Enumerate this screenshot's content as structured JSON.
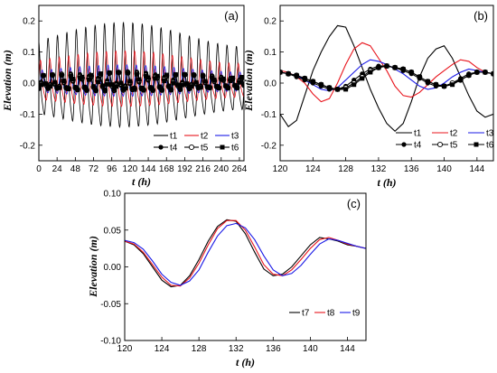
{
  "chart_data": [
    {
      "panel": "(a)",
      "type": "line",
      "xlabel": "t (h)",
      "ylabel": "Elevation (m)",
      "xlim": [
        0,
        270
      ],
      "ylim": [
        -0.25,
        0.25
      ],
      "xticks": [
        "0",
        "24",
        "48",
        "72",
        "96",
        "120",
        "144",
        "168",
        "192",
        "216",
        "240",
        "264"
      ],
      "yticks": [
        "-0.2",
        "-0.1",
        "0.0",
        "0.1",
        "0.2"
      ],
      "legend_position": "bottom-right",
      "series": [
        {
          "name": "t1",
          "color": "#000000",
          "marker": "none",
          "amplitude": 0.16,
          "period_h": 12.4,
          "lag_h": 0
        },
        {
          "name": "t2",
          "color": "#e8141c",
          "marker": "none",
          "amplitude": 0.085,
          "period_h": 12.4,
          "lag_h": 2.4
        },
        {
          "name": "t3",
          "color": "#1a1ae6",
          "marker": "none",
          "amplitude": 0.048,
          "period_h": 12.4,
          "lag_h": 4.6
        },
        {
          "name": "t4",
          "color": "#000000",
          "marker": "filled-circle",
          "amplitude": 0.03,
          "period_h": 12.4,
          "lag_h": 5.6
        },
        {
          "name": "t5",
          "color": "#000000",
          "marker": "open-circle",
          "amplitude": 0.028,
          "period_h": 12.4,
          "lag_h": 6.0
        },
        {
          "name": "t6",
          "color": "#000000",
          "marker": "filled-square",
          "amplitude": 0.028,
          "period_h": 12.4,
          "lag_h": 6.2
        }
      ]
    },
    {
      "panel": "(b)",
      "type": "line",
      "xlabel": "t (h)",
      "ylabel": "Elevation (m)",
      "xlim": [
        120,
        146
      ],
      "ylim": [
        -0.25,
        0.25
      ],
      "xticks": [
        "120",
        "124",
        "128",
        "132",
        "136",
        "140",
        "144"
      ],
      "yticks": [
        "-0.2",
        "-0.1",
        "0.0",
        "0.1",
        "0.2"
      ],
      "legend_position": "bottom",
      "series": [
        {
          "name": "t1",
          "color": "#000000",
          "marker": "none",
          "x": [
            120,
            121,
            122,
            123,
            124,
            125,
            126,
            127,
            128,
            129,
            130,
            131,
            132,
            133,
            134,
            135,
            136,
            137,
            138,
            139,
            140,
            141,
            142,
            143,
            144,
            145,
            146
          ],
          "y": [
            -0.1,
            -0.14,
            -0.12,
            -0.04,
            0.04,
            0.1,
            0.15,
            0.185,
            0.18,
            0.12,
            0.05,
            -0.02,
            -0.08,
            -0.13,
            -0.155,
            -0.13,
            -0.06,
            0.02,
            0.08,
            0.11,
            0.12,
            0.08,
            0.02,
            -0.04,
            -0.09,
            -0.11,
            -0.1
          ]
        },
        {
          "name": "t2",
          "color": "#e8141c",
          "marker": "none",
          "x": [
            120,
            121,
            122,
            123,
            124,
            125,
            126,
            127,
            128,
            129,
            130,
            131,
            132,
            133,
            134,
            135,
            136,
            137,
            138,
            139,
            140,
            141,
            142,
            143,
            144,
            145,
            146
          ],
          "y": [
            0.04,
            0.035,
            0.02,
            0.0,
            -0.035,
            -0.06,
            -0.05,
            0.0,
            0.06,
            0.11,
            0.13,
            0.12,
            0.08,
            0.04,
            -0.01,
            -0.04,
            -0.045,
            -0.03,
            -0.005,
            0.02,
            0.04,
            0.06,
            0.075,
            0.07,
            0.05,
            0.035,
            0.03
          ]
        },
        {
          "name": "t3",
          "color": "#1a1ae6",
          "marker": "none",
          "x": [
            120,
            121,
            122,
            123,
            124,
            125,
            126,
            127,
            128,
            129,
            130,
            131,
            132,
            133,
            134,
            135,
            136,
            137,
            138,
            139,
            140,
            141,
            142,
            143,
            144,
            145,
            146
          ],
          "y": [
            0.035,
            0.03,
            0.025,
            0.01,
            -0.005,
            -0.02,
            -0.025,
            -0.015,
            0.01,
            0.035,
            0.06,
            0.075,
            0.07,
            0.06,
            0.045,
            0.03,
            0.01,
            -0.01,
            -0.02,
            -0.015,
            0.0,
            0.02,
            0.035,
            0.045,
            0.04,
            0.035,
            0.03
          ]
        },
        {
          "name": "t4",
          "color": "#000000",
          "marker": "filled-circle",
          "x": [
            120,
            121,
            122,
            123,
            124,
            125,
            126,
            127,
            128,
            129,
            130,
            131,
            132,
            133,
            134,
            135,
            136,
            137,
            138,
            139,
            140,
            141,
            142,
            143,
            144,
            145,
            146
          ],
          "y": [
            0.035,
            0.03,
            0.02,
            0.01,
            0.0,
            -0.01,
            -0.02,
            -0.02,
            -0.01,
            0.01,
            0.03,
            0.045,
            0.055,
            0.055,
            0.05,
            0.04,
            0.03,
            0.015,
            0.0,
            -0.01,
            -0.01,
            0.0,
            0.015,
            0.03,
            0.035,
            0.035,
            0.03
          ]
        },
        {
          "name": "t5",
          "color": "#000000",
          "marker": "open-circle",
          "x": [
            120,
            121,
            122,
            123,
            124,
            125,
            126,
            127,
            128,
            129,
            130,
            131,
            132,
            133,
            134,
            135,
            136,
            137,
            138,
            139,
            140,
            141,
            142,
            143,
            144,
            145,
            146
          ],
          "y": [
            0.035,
            0.03,
            0.025,
            0.015,
            0.005,
            -0.005,
            -0.015,
            -0.02,
            -0.015,
            0.0,
            0.02,
            0.04,
            0.05,
            0.055,
            0.05,
            0.045,
            0.035,
            0.02,
            0.005,
            -0.005,
            -0.01,
            0.0,
            0.01,
            0.025,
            0.035,
            0.035,
            0.03
          ]
        },
        {
          "name": "t6",
          "color": "#000000",
          "marker": "filled-square",
          "x": [
            120,
            121,
            122,
            123,
            124,
            125,
            126,
            127,
            128,
            129,
            130,
            131,
            132,
            133,
            134,
            135,
            136,
            137,
            138,
            139,
            140,
            141,
            142,
            143,
            144,
            145,
            146
          ],
          "y": [
            0.035,
            0.03,
            0.025,
            0.015,
            0.005,
            -0.005,
            -0.015,
            -0.02,
            -0.02,
            -0.005,
            0.015,
            0.035,
            0.05,
            0.055,
            0.05,
            0.045,
            0.035,
            0.02,
            0.005,
            -0.005,
            -0.01,
            -0.005,
            0.01,
            0.025,
            0.035,
            0.035,
            0.03
          ]
        }
      ]
    },
    {
      "panel": "(c)",
      "type": "line",
      "xlabel": "t (h)",
      "ylabel": "Elevation (m)",
      "xlim": [
        120,
        146
      ],
      "ylim": [
        -0.1,
        0.1
      ],
      "xticks": [
        "120",
        "124",
        "128",
        "132",
        "136",
        "140",
        "144"
      ],
      "yticks": [
        "-0.10",
        "-0.05",
        "0.00",
        "0.05",
        "0.10"
      ],
      "legend_position": "bottom-right",
      "series": [
        {
          "name": "t7",
          "color": "#000000",
          "marker": "none",
          "x": [
            120,
            121,
            122,
            123,
            124,
            125,
            126,
            127,
            128,
            129,
            130,
            131,
            132,
            133,
            134,
            135,
            136,
            137,
            138,
            139,
            140,
            141,
            142,
            143,
            144,
            145,
            146
          ],
          "y": [
            0.035,
            0.03,
            0.018,
            0.0,
            -0.018,
            -0.027,
            -0.025,
            -0.012,
            0.01,
            0.035,
            0.055,
            0.064,
            0.062,
            0.045,
            0.02,
            -0.003,
            -0.012,
            -0.01,
            0.0,
            0.015,
            0.03,
            0.04,
            0.038,
            0.035,
            0.03,
            0.028,
            0.025
          ]
        },
        {
          "name": "t8",
          "color": "#e8141c",
          "marker": "none",
          "x": [
            120,
            121,
            122,
            123,
            124,
            125,
            126,
            127,
            128,
            129,
            130,
            131,
            132,
            133,
            134,
            135,
            136,
            137,
            138,
            139,
            140,
            141,
            142,
            143,
            144,
            145,
            146
          ],
          "y": [
            0.035,
            0.031,
            0.02,
            0.003,
            -0.014,
            -0.025,
            -0.026,
            -0.015,
            0.005,
            0.03,
            0.052,
            0.063,
            0.063,
            0.05,
            0.027,
            0.003,
            -0.01,
            -0.012,
            -0.004,
            0.01,
            0.025,
            0.037,
            0.04,
            0.036,
            0.031,
            0.028,
            0.025
          ]
        },
        {
          "name": "t9",
          "color": "#1a1ae6",
          "marker": "none",
          "x": [
            120,
            121,
            122,
            123,
            124,
            125,
            126,
            127,
            128,
            129,
            130,
            131,
            132,
            133,
            134,
            135,
            136,
            137,
            138,
            139,
            140,
            141,
            142,
            143,
            144,
            145,
            146
          ],
          "y": [
            0.036,
            0.033,
            0.024,
            0.008,
            -0.01,
            -0.021,
            -0.025,
            -0.019,
            -0.004,
            0.02,
            0.042,
            0.056,
            0.059,
            0.053,
            0.037,
            0.015,
            -0.004,
            -0.012,
            -0.009,
            0.002,
            0.017,
            0.031,
            0.038,
            0.036,
            0.032,
            0.028,
            0.025
          ]
        }
      ]
    }
  ]
}
